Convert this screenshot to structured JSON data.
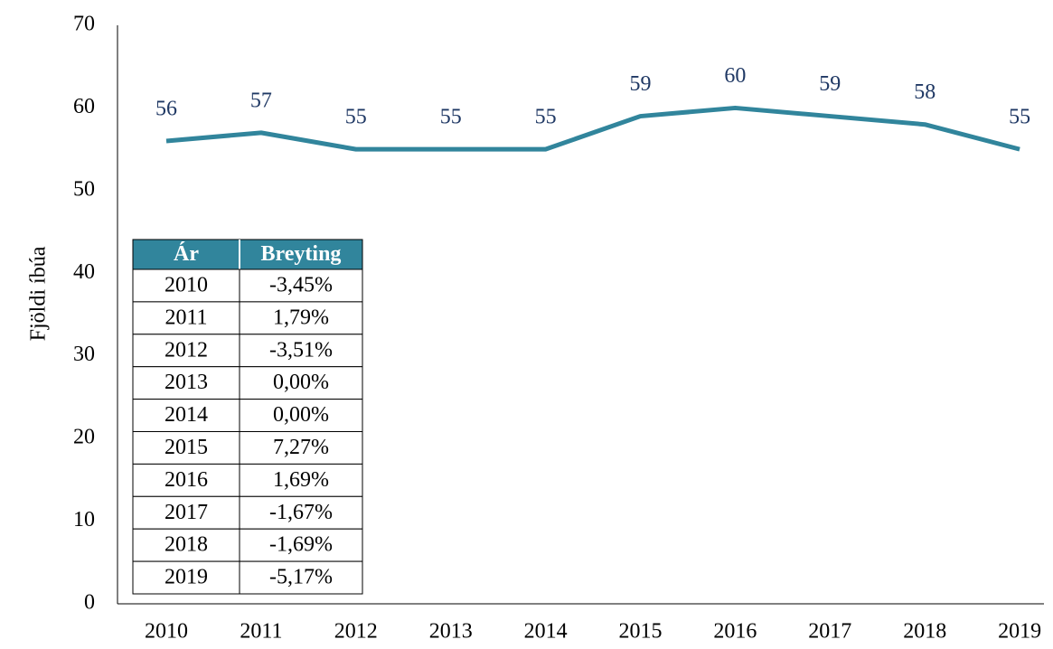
{
  "chart_data": {
    "type": "line",
    "y_label": "Fjöldi íbúa",
    "categories": [
      "2010",
      "2011",
      "2012",
      "2013",
      "2014",
      "2015",
      "2016",
      "2017",
      "2018",
      "2019"
    ],
    "values": [
      56,
      57,
      55,
      55,
      55,
      59,
      60,
      59,
      58,
      55
    ],
    "color": "#31859c",
    "label_color": "#1f3864",
    "ylim": [
      0,
      70
    ],
    "yticks": [
      0,
      10,
      20,
      30,
      40,
      50,
      60,
      70
    ],
    "grid": false
  },
  "table": {
    "header": [
      "Ár",
      "Breyting"
    ],
    "header_color": "#31859c",
    "rows": [
      [
        "2010",
        "-3,45%"
      ],
      [
        "2011",
        "1,79%"
      ],
      [
        "2012",
        "-3,51%"
      ],
      [
        "2013",
        "0,00%"
      ],
      [
        "2014",
        "0,00%"
      ],
      [
        "2015",
        "7,27%"
      ],
      [
        "2016",
        "1,69%"
      ],
      [
        "2017",
        "-1,67%"
      ],
      [
        "2018",
        "-1,69%"
      ],
      [
        "2019",
        "-5,17%"
      ]
    ]
  }
}
